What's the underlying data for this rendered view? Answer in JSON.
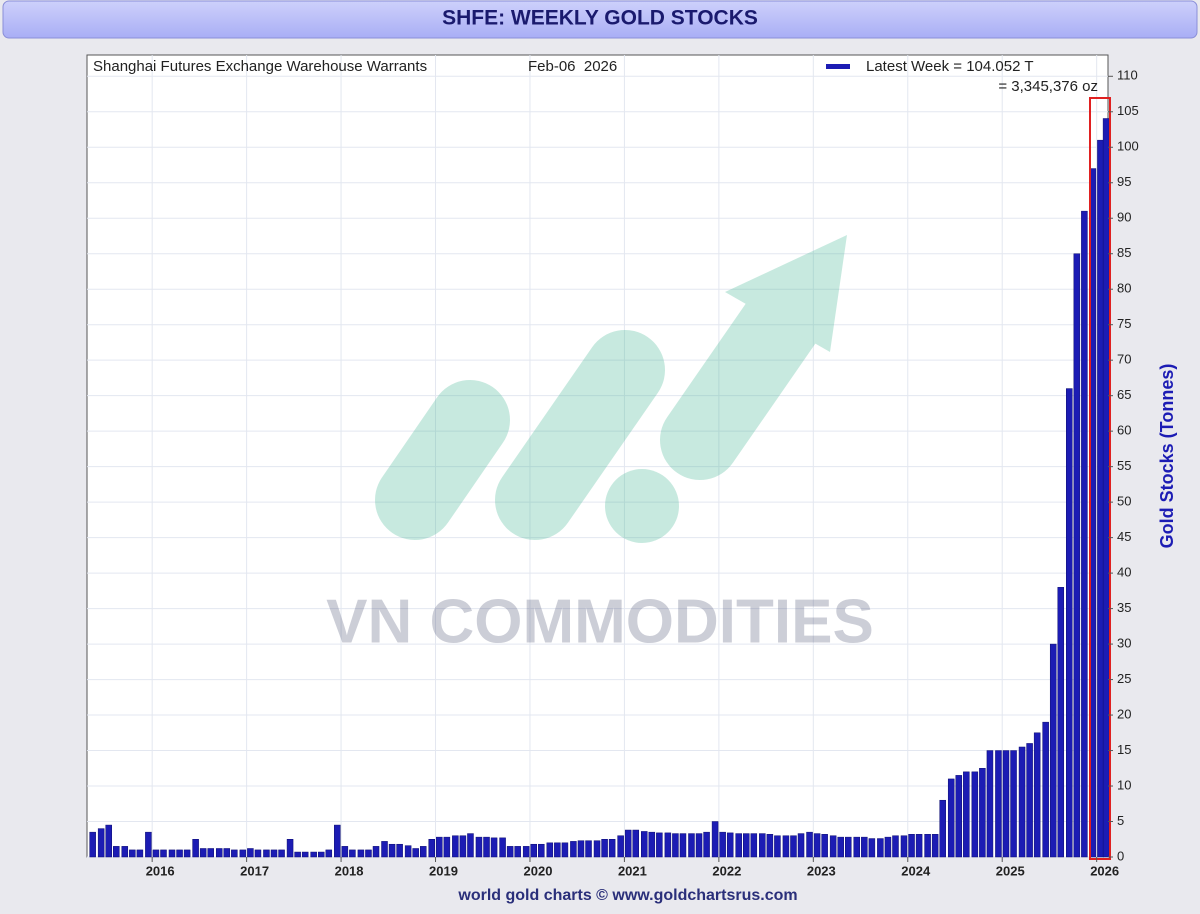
{
  "chart_data": {
    "type": "bar",
    "title": "SHFE: WEEKLY GOLD STOCKS",
    "subtitle": "Shanghai Futures Exchange Warehouse Warrants",
    "date": "Feb-06  2026",
    "annotation": "= 3,345,376 oz",
    "watermark": "VN COMMODITIES",
    "y_label": "Gold Stocks (Tonnes)",
    "footer": "world gold charts © www.goldchartsrus.com",
    "legend": "top-right",
    "grid": true,
    "xlim": [
      2015.31,
      2026.12
    ],
    "xticks": [
      2016,
      2017,
      2018,
      2019,
      2020,
      2021,
      2022,
      2023,
      2024,
      2025,
      2026
    ],
    "ylim": [
      0,
      113
    ],
    "yticks": [
      0,
      5,
      10,
      15,
      20,
      25,
      30,
      35,
      40,
      45,
      50,
      55,
      60,
      65,
      70,
      75,
      80,
      85,
      90,
      95,
      100,
      105,
      110
    ],
    "x": [
      2015.37,
      2015.46,
      2015.54,
      2015.62,
      2015.71,
      2015.79,
      2015.87,
      2015.96,
      2016.04,
      2016.12,
      2016.21,
      2016.29,
      2016.37,
      2016.46,
      2016.54,
      2016.62,
      2016.71,
      2016.79,
      2016.87,
      2016.96,
      2017.04,
      2017.12,
      2017.21,
      2017.29,
      2017.37,
      2017.46,
      2017.54,
      2017.62,
      2017.71,
      2017.79,
      2017.87,
      2017.96,
      2018.04,
      2018.12,
      2018.21,
      2018.29,
      2018.37,
      2018.46,
      2018.54,
      2018.62,
      2018.71,
      2018.79,
      2018.87,
      2018.96,
      2019.04,
      2019.12,
      2019.21,
      2019.29,
      2019.37,
      2019.46,
      2019.54,
      2019.62,
      2019.71,
      2019.79,
      2019.87,
      2019.96,
      2020.04,
      2020.12,
      2020.21,
      2020.29,
      2020.37,
      2020.46,
      2020.54,
      2020.62,
      2020.71,
      2020.79,
      2020.87,
      2020.96,
      2021.04,
      2021.12,
      2021.21,
      2021.29,
      2021.37,
      2021.46,
      2021.54,
      2021.62,
      2021.71,
      2021.79,
      2021.87,
      2021.96,
      2022.04,
      2022.12,
      2022.21,
      2022.29,
      2022.37,
      2022.46,
      2022.54,
      2022.62,
      2022.71,
      2022.79,
      2022.87,
      2022.96,
      2023.04,
      2023.12,
      2023.21,
      2023.29,
      2023.37,
      2023.46,
      2023.54,
      2023.62,
      2023.71,
      2023.79,
      2023.87,
      2023.96,
      2024.04,
      2024.12,
      2024.21,
      2024.29,
      2024.37,
      2024.46,
      2024.54,
      2024.62,
      2024.71,
      2024.79,
      2024.87,
      2024.96,
      2025.04,
      2025.12,
      2025.21,
      2025.29,
      2025.37,
      2025.46,
      2025.54,
      2025.62,
      2025.71,
      2025.79,
      2025.87,
      2025.96,
      2026.04,
      2026.1
    ],
    "series": [
      {
        "name": "Latest Week = 104.052 T",
        "color": "#1c1cb4",
        "values": [
          3.5,
          4,
          4.5,
          1.5,
          1.5,
          1,
          1,
          3.5,
          1,
          1,
          1,
          1,
          1,
          2.5,
          1.2,
          1.2,
          1.2,
          1.2,
          1,
          1,
          1.2,
          1,
          1,
          1,
          1,
          2.5,
          0.7,
          0.7,
          0.7,
          0.7,
          1,
          4.5,
          1.5,
          1,
          1,
          1,
          1.5,
          2.2,
          1.8,
          1.8,
          1.6,
          1.2,
          1.5,
          2.5,
          2.8,
          2.8,
          3,
          3,
          3.3,
          2.8,
          2.8,
          2.7,
          2.7,
          1.5,
          1.5,
          1.5,
          1.8,
          1.8,
          2,
          2,
          2,
          2.2,
          2.3,
          2.3,
          2.3,
          2.5,
          2.5,
          3,
          3.8,
          3.8,
          3.6,
          3.5,
          3.4,
          3.4,
          3.3,
          3.3,
          3.3,
          3.3,
          3.5,
          5,
          3.5,
          3.4,
          3.3,
          3.3,
          3.3,
          3.3,
          3.2,
          3,
          3,
          3,
          3.3,
          3.5,
          3.3,
          3.2,
          3,
          2.8,
          2.8,
          2.8,
          2.8,
          2.6,
          2.6,
          2.8,
          3,
          3,
          3.2,
          3.2,
          3.2,
          3.2,
          8,
          11,
          11.5,
          12,
          12,
          12.5,
          15,
          15,
          15,
          15,
          15.5,
          16,
          17.5,
          19,
          30,
          38,
          66,
          85,
          91,
          97,
          101,
          104.052
        ]
      }
    ]
  }
}
